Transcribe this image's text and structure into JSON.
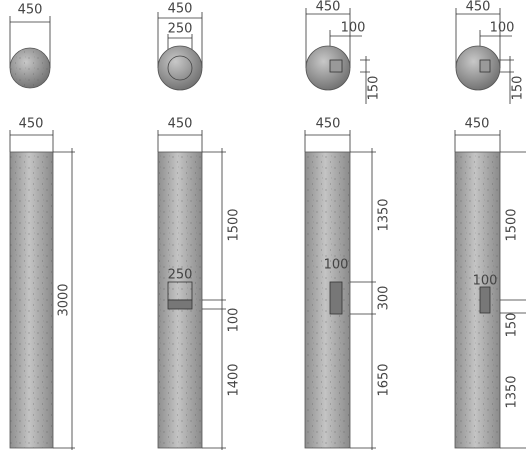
{
  "views": [
    {
      "plan": [
        "450"
      ],
      "elevation": [
        "450",
        "3000"
      ]
    },
    {
      "plan": [
        "450",
        "250"
      ],
      "elevation": [
        "450",
        "1500",
        "250",
        "100",
        "1400"
      ]
    },
    {
      "plan": [
        "450",
        "100",
        "150"
      ],
      "elevation": [
        "450",
        "1350",
        "100",
        "300",
        "1650"
      ]
    },
    {
      "plan": [
        "450",
        "100",
        "150"
      ],
      "elevation": [
        "450",
        "1500",
        "100",
        "150",
        "1350"
      ]
    }
  ]
}
